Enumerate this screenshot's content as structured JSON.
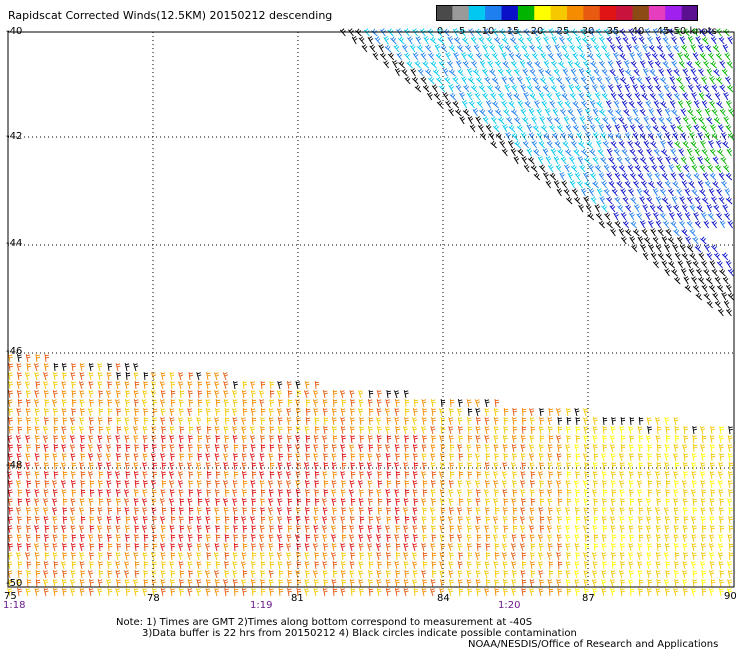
{
  "title": "Rapidscat Corrected Winds(12.5KM) 20150212 descending",
  "colorbar": {
    "labels": [
      "0",
      "5",
      "10",
      "15",
      "20",
      "25",
      "30",
      "35",
      "40",
      "45",
      ">50 knots"
    ],
    "colors": [
      "#4a4a4a",
      "#9a9a9a",
      "#00c8f0",
      "#1e7ff0",
      "#0a10c8",
      "#00b400",
      "#ffff00",
      "#f5c800",
      "#f58c00",
      "#e85a10",
      "#e01414",
      "#c8143c",
      "#8c4a14",
      "#e63cbe",
      "#a020f0",
      "#5a1090"
    ]
  },
  "map": {
    "lat_labels": [
      "-40",
      "-42",
      "-44",
      "-46",
      "-48",
      "-50"
    ],
    "lon_labels": [
      "75",
      "78",
      "81",
      "84",
      "87",
      "90"
    ],
    "time_labels": [
      "1:18",
      "1:19",
      "1:20"
    ]
  },
  "notes": {
    "line1": "Note: 1) Times are GMT 2)Times along bottom correspond to measurement at -40S",
    "line2": "3)Data buffer is 22 hrs from 20150212 4) Black circles indicate possible contamination",
    "credit": "NOAA/NESDIS/Office of Research and Applications"
  }
}
